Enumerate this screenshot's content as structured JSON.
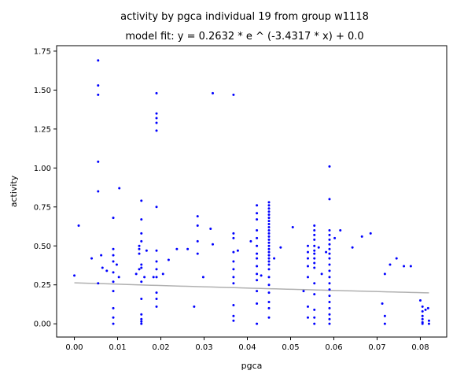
{
  "chart_data": {
    "type": "scatter",
    "title": "activity by pgca individual 19 from group w1118",
    "subtitle": "model fit: y = 0.2632 * e ^ (-3.4317 * x) + 0.0",
    "xlabel": "pgca",
    "ylabel": "activity",
    "xlim": [
      -0.0041,
      0.0861
    ],
    "ylim": [
      -0.085,
      1.785
    ],
    "x_ticks": [
      "0.00",
      "0.01",
      "0.02",
      "0.03",
      "0.04",
      "0.05",
      "0.06",
      "0.07",
      "0.08"
    ],
    "y_ticks": [
      "0.00",
      "0.25",
      "0.50",
      "0.75",
      "1.00",
      "1.25",
      "1.50",
      "1.75"
    ],
    "grid": false,
    "point_color": "#0000ff",
    "fit_color": "#b0b0b0",
    "fit": {
      "a": 0.2632,
      "b": -3.4317,
      "c": 0.0,
      "x_range": [
        0.0,
        0.082
      ]
    },
    "points": [
      [
        0.0,
        0.31
      ],
      [
        0.001,
        0.63
      ],
      [
        0.004,
        0.42
      ],
      [
        0.0055,
        1.69
      ],
      [
        0.0055,
        1.53
      ],
      [
        0.0055,
        1.47
      ],
      [
        0.0055,
        1.04
      ],
      [
        0.0055,
        0.85
      ],
      [
        0.0055,
        0.26
      ],
      [
        0.0062,
        0.44
      ],
      [
        0.0065,
        0.36
      ],
      [
        0.0075,
        0.34
      ],
      [
        0.009,
        0.68
      ],
      [
        0.009,
        0.48
      ],
      [
        0.009,
        0.44
      ],
      [
        0.009,
        0.4
      ],
      [
        0.009,
        0.33
      ],
      [
        0.009,
        0.27
      ],
      [
        0.009,
        0.21
      ],
      [
        0.009,
        0.1
      ],
      [
        0.009,
        0.04
      ],
      [
        0.009,
        0.0
      ],
      [
        0.0098,
        0.38
      ],
      [
        0.0104,
        0.87
      ],
      [
        0.0103,
        0.3
      ],
      [
        0.0143,
        0.32
      ],
      [
        0.015,
        0.35
      ],
      [
        0.015,
        0.45
      ],
      [
        0.015,
        0.48
      ],
      [
        0.015,
        0.5
      ],
      [
        0.0155,
        0.79
      ],
      [
        0.0155,
        0.67
      ],
      [
        0.0155,
        0.58
      ],
      [
        0.0155,
        0.53
      ],
      [
        0.0155,
        0.38
      ],
      [
        0.0155,
        0.36
      ],
      [
        0.0155,
        0.27
      ],
      [
        0.0155,
        0.16
      ],
      [
        0.0155,
        0.06
      ],
      [
        0.0155,
        0.03
      ],
      [
        0.0155,
        0.015
      ],
      [
        0.0155,
        0.0
      ],
      [
        0.0162,
        0.3
      ],
      [
        0.0167,
        0.47
      ],
      [
        0.0183,
        0.3
      ],
      [
        0.019,
        1.48
      ],
      [
        0.019,
        1.35
      ],
      [
        0.019,
        1.32
      ],
      [
        0.019,
        1.29
      ],
      [
        0.019,
        1.24
      ],
      [
        0.019,
        0.75
      ],
      [
        0.019,
        0.47
      ],
      [
        0.019,
        0.4
      ],
      [
        0.019,
        0.35
      ],
      [
        0.019,
        0.3
      ],
      [
        0.019,
        0.2
      ],
      [
        0.019,
        0.16
      ],
      [
        0.019,
        0.11
      ],
      [
        0.0205,
        0.32
      ],
      [
        0.0218,
        0.41
      ],
      [
        0.0237,
        0.48
      ],
      [
        0.0262,
        0.48
      ],
      [
        0.0277,
        0.11
      ],
      [
        0.0285,
        0.69
      ],
      [
        0.0285,
        0.63
      ],
      [
        0.0285,
        0.53
      ],
      [
        0.0285,
        0.45
      ],
      [
        0.0298,
        0.3
      ],
      [
        0.0315,
        0.61
      ],
      [
        0.032,
        1.48
      ],
      [
        0.032,
        0.51
      ],
      [
        0.0368,
        1.47
      ],
      [
        0.0368,
        0.58
      ],
      [
        0.0368,
        0.55
      ],
      [
        0.0368,
        0.46
      ],
      [
        0.0368,
        0.4
      ],
      [
        0.0368,
        0.35
      ],
      [
        0.0368,
        0.3
      ],
      [
        0.0368,
        0.26
      ],
      [
        0.0368,
        0.12
      ],
      [
        0.0368,
        0.05
      ],
      [
        0.0368,
        0.02
      ],
      [
        0.0378,
        0.47
      ],
      [
        0.0408,
        0.53
      ],
      [
        0.0422,
        0.76
      ],
      [
        0.0422,
        0.71
      ],
      [
        0.0422,
        0.67
      ],
      [
        0.0422,
        0.6
      ],
      [
        0.0422,
        0.55
      ],
      [
        0.0422,
        0.5
      ],
      [
        0.0422,
        0.45
      ],
      [
        0.0422,
        0.42
      ],
      [
        0.0422,
        0.37
      ],
      [
        0.0422,
        0.32
      ],
      [
        0.0422,
        0.28
      ],
      [
        0.0422,
        0.21
      ],
      [
        0.0422,
        0.13
      ],
      [
        0.0422,
        0.0
      ],
      [
        0.0432,
        0.31
      ],
      [
        0.045,
        0.78
      ],
      [
        0.045,
        0.76
      ],
      [
        0.045,
        0.74
      ],
      [
        0.045,
        0.72
      ],
      [
        0.045,
        0.7
      ],
      [
        0.045,
        0.68
      ],
      [
        0.045,
        0.66
      ],
      [
        0.045,
        0.64
      ],
      [
        0.045,
        0.62
      ],
      [
        0.045,
        0.6
      ],
      [
        0.045,
        0.58
      ],
      [
        0.045,
        0.56
      ],
      [
        0.045,
        0.54
      ],
      [
        0.045,
        0.52
      ],
      [
        0.045,
        0.5
      ],
      [
        0.045,
        0.48
      ],
      [
        0.045,
        0.46
      ],
      [
        0.045,
        0.44
      ],
      [
        0.045,
        0.42
      ],
      [
        0.045,
        0.4
      ],
      [
        0.045,
        0.38
      ],
      [
        0.045,
        0.35
      ],
      [
        0.045,
        0.3
      ],
      [
        0.045,
        0.25
      ],
      [
        0.045,
        0.2
      ],
      [
        0.045,
        0.14
      ],
      [
        0.045,
        0.1
      ],
      [
        0.045,
        0.04
      ],
      [
        0.0462,
        0.42
      ],
      [
        0.0477,
        0.49
      ],
      [
        0.0505,
        0.62
      ],
      [
        0.053,
        0.21
      ],
      [
        0.054,
        0.5
      ],
      [
        0.054,
        0.46
      ],
      [
        0.054,
        0.42
      ],
      [
        0.054,
        0.37
      ],
      [
        0.054,
        0.3
      ],
      [
        0.054,
        0.11
      ],
      [
        0.054,
        0.04
      ],
      [
        0.0555,
        0.63
      ],
      [
        0.0555,
        0.6
      ],
      [
        0.0555,
        0.57
      ],
      [
        0.0555,
        0.54
      ],
      [
        0.0555,
        0.5
      ],
      [
        0.0555,
        0.47
      ],
      [
        0.0555,
        0.45
      ],
      [
        0.0555,
        0.42
      ],
      [
        0.0555,
        0.39
      ],
      [
        0.0555,
        0.36
      ],
      [
        0.0555,
        0.26
      ],
      [
        0.0555,
        0.19
      ],
      [
        0.0555,
        0.09
      ],
      [
        0.0555,
        0.04
      ],
      [
        0.0555,
        0.0
      ],
      [
        0.0565,
        0.49
      ],
      [
        0.0572,
        0.32
      ],
      [
        0.0582,
        0.46
      ],
      [
        0.059,
        1.01
      ],
      [
        0.059,
        0.8
      ],
      [
        0.059,
        0.6
      ],
      [
        0.059,
        0.57
      ],
      [
        0.059,
        0.54
      ],
      [
        0.059,
        0.51
      ],
      [
        0.059,
        0.48
      ],
      [
        0.059,
        0.45
      ],
      [
        0.059,
        0.42
      ],
      [
        0.059,
        0.38
      ],
      [
        0.059,
        0.34
      ],
      [
        0.059,
        0.3
      ],
      [
        0.059,
        0.26
      ],
      [
        0.059,
        0.22
      ],
      [
        0.059,
        0.18
      ],
      [
        0.059,
        0.14
      ],
      [
        0.059,
        0.1
      ],
      [
        0.059,
        0.06
      ],
      [
        0.059,
        0.03
      ],
      [
        0.059,
        0.0
      ],
      [
        0.0602,
        0.55
      ],
      [
        0.0615,
        0.6
      ],
      [
        0.0643,
        0.49
      ],
      [
        0.0665,
        0.56
      ],
      [
        0.0685,
        0.58
      ],
      [
        0.0712,
        0.13
      ],
      [
        0.0718,
        0.32
      ],
      [
        0.0718,
        0.05
      ],
      [
        0.0718,
        0.0
      ],
      [
        0.073,
        0.38
      ],
      [
        0.0745,
        0.42
      ],
      [
        0.0762,
        0.37
      ],
      [
        0.0778,
        0.37
      ],
      [
        0.08,
        0.15
      ],
      [
        0.0805,
        0.11
      ],
      [
        0.0805,
        0.08
      ],
      [
        0.0805,
        0.05
      ],
      [
        0.0805,
        0.03
      ],
      [
        0.0805,
        0.01
      ],
      [
        0.0805,
        0.0
      ],
      [
        0.0812,
        0.09
      ],
      [
        0.0818,
        0.1
      ],
      [
        0.082,
        0.02
      ],
      [
        0.082,
        0.0
      ]
    ]
  }
}
